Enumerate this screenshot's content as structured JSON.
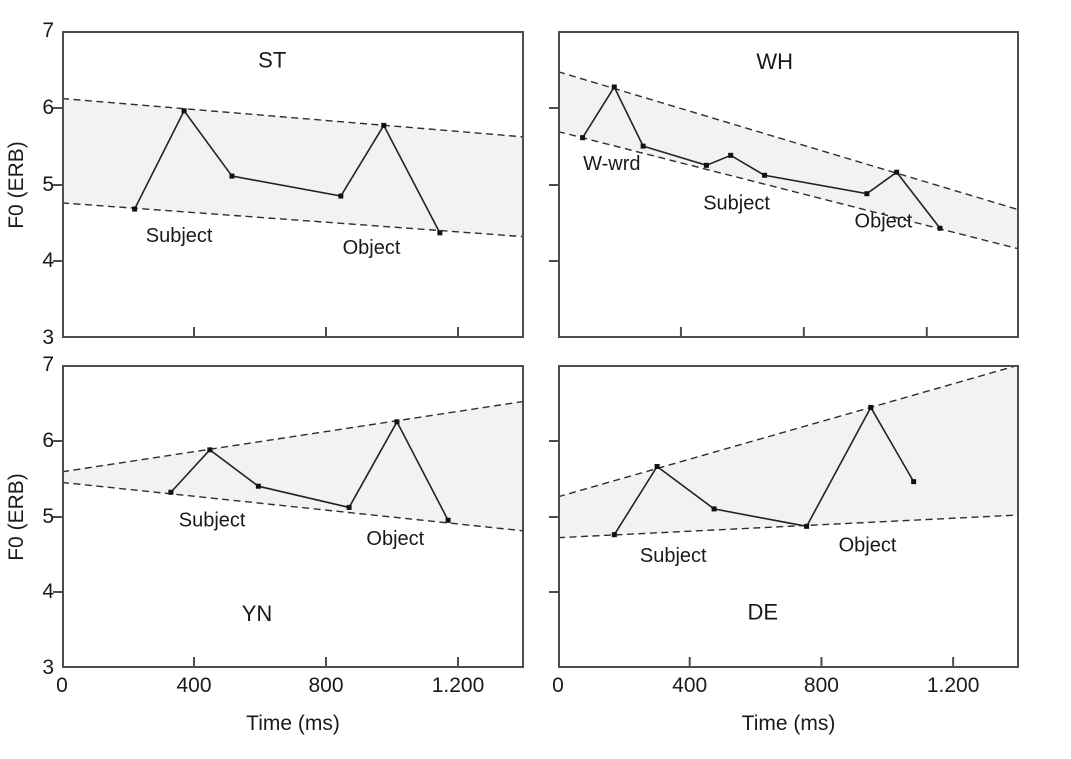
{
  "figure": {
    "background": "#ffffff",
    "axis_color": "#4d4d4d",
    "band_color": "#f2f2f2",
    "line_color": "#222222",
    "dash_color": "#2e2e2e",
    "marker_color": "#111111",
    "text_color": "#1a1a1a",
    "y_axis_label": "F0 (ERB)",
    "x_axis_label": "Time (ms)",
    "y_tick_labels": [
      "7",
      "6",
      "5",
      "4",
      "3"
    ],
    "y_tick_values": [
      7,
      6,
      5,
      4,
      3
    ],
    "y_tick_mark_values": [
      6,
      5,
      4
    ],
    "x_tick_labels": [
      "0",
      "400",
      "800",
      "1.200"
    ],
    "x_tick_label_values": [
      0,
      400,
      800,
      1200
    ],
    "x_tick_mark_values": [
      400,
      800,
      1200
    ]
  },
  "chart_data": [
    {
      "type": "line",
      "title": "ST",
      "title_pos": {
        "x": 637,
        "y": 6.62
      },
      "xlabel": "Time (ms)",
      "ylabel": "F0 (ERB)",
      "xlim": [
        0,
        1400
      ],
      "ylim": [
        3,
        7
      ],
      "x": [
        220,
        370,
        515,
        845,
        975,
        1145
      ],
      "y": [
        4.68,
        5.96,
        5.11,
        4.85,
        5.77,
        4.37
      ],
      "declination_upper": {
        "x": [
          0,
          1400
        ],
        "y": [
          6.12,
          5.62
        ]
      },
      "declination_lower": {
        "x": [
          0,
          1400
        ],
        "y": [
          4.76,
          4.32
        ]
      },
      "annotations": [
        {
          "text": "Subject",
          "x": 355,
          "y": 4.33
        },
        {
          "text": "Object",
          "x": 938,
          "y": 4.17
        }
      ]
    },
    {
      "type": "line",
      "title": "WH",
      "title_pos": {
        "x": 705,
        "y": 6.6
      },
      "xlabel": "Time (ms)",
      "ylabel": "F0 (ERB)",
      "xlim": [
        0,
        1500
      ],
      "ylim": [
        3,
        7
      ],
      "x": [
        80,
        183,
        277,
        483,
        562,
        672,
        1005,
        1102,
        1243
      ],
      "y": [
        5.61,
        6.27,
        5.5,
        5.25,
        5.38,
        5.12,
        4.88,
        5.16,
        4.43
      ],
      "declination_upper": {
        "x": [
          0,
          1500
        ],
        "y": [
          6.47,
          4.67
        ]
      },
      "declination_lower": {
        "x": [
          0,
          1500
        ],
        "y": [
          5.69,
          4.16
        ]
      },
      "annotations": [
        {
          "text": "W-wrd",
          "x": 175,
          "y": 5.27
        },
        {
          "text": "Subject",
          "x": 581,
          "y": 4.75
        },
        {
          "text": "Object",
          "x": 1059,
          "y": 4.52
        }
      ]
    },
    {
      "type": "line",
      "title": "YN",
      "title_pos": {
        "x": 591,
        "y": 3.72
      },
      "xlabel": "Time (ms)",
      "ylabel": "F0 (ERB)",
      "xlim": [
        0,
        1400
      ],
      "ylim": [
        3,
        7
      ],
      "x": [
        330,
        448,
        595,
        870,
        1015,
        1170
      ],
      "y": [
        5.32,
        5.88,
        5.4,
        5.12,
        6.25,
        4.95
      ],
      "declination_upper": {
        "x": [
          0,
          1400
        ],
        "y": [
          5.59,
          6.52
        ]
      },
      "declination_lower": {
        "x": [
          0,
          1400
        ],
        "y": [
          5.45,
          4.81
        ]
      },
      "annotations": [
        {
          "text": "Subject",
          "x": 455,
          "y": 4.95
        },
        {
          "text": "Object",
          "x": 1010,
          "y": 4.7
        }
      ]
    },
    {
      "type": "line",
      "title": "DE",
      "title_pos": {
        "x": 622,
        "y": 3.74
      },
      "xlabel": "Time (ms)",
      "ylabel": "F0 (ERB)",
      "xlim": [
        0,
        1400
      ],
      "ylim": [
        3,
        7
      ],
      "x": [
        171,
        301,
        474,
        755,
        950,
        1080
      ],
      "y": [
        4.76,
        5.66,
        5.1,
        4.87,
        6.44,
        5.46
      ],
      "declination_upper": {
        "x": [
          0,
          1400
        ],
        "y": [
          5.26,
          7.0
        ]
      },
      "declination_lower": {
        "x": [
          0,
          1400
        ],
        "y": [
          4.72,
          5.02
        ]
      },
      "annotations": [
        {
          "text": "Subject",
          "x": 350,
          "y": 4.48
        },
        {
          "text": "Object",
          "x": 940,
          "y": 4.62
        }
      ]
    }
  ]
}
